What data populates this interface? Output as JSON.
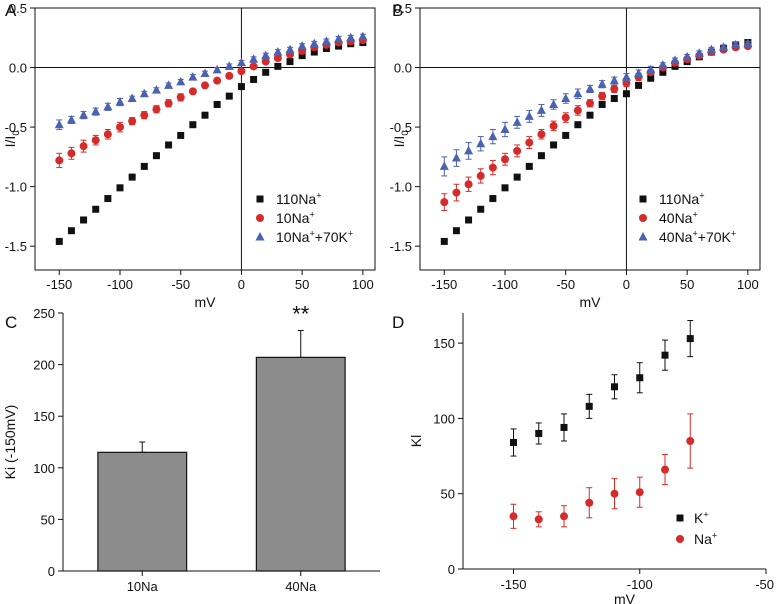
{
  "chart_data": [
    {
      "panel": "A",
      "type": "scatter",
      "xlabel": "mV",
      "ylabel": "I/I0",
      "xlim": [
        -170,
        110
      ],
      "ylim": [
        -1.7,
        0.5
      ],
      "xticks": [
        -150,
        -100,
        -50,
        0,
        50,
        100
      ],
      "yticks": [
        0.5,
        0.0,
        -0.5,
        -1.0,
        -1.5
      ],
      "xtick_labels": [
        "-150",
        "-100",
        "-50",
        "0",
        "50",
        "100"
      ],
      "ytick_labels": [
        "0.5",
        "0.0",
        "-0.5",
        "-1.0",
        "-1.5"
      ],
      "x": [
        -150,
        -140,
        -130,
        -120,
        -110,
        -100,
        -90,
        -80,
        -70,
        -60,
        -50,
        -40,
        -30,
        -20,
        -10,
        0,
        10,
        20,
        30,
        40,
        50,
        60,
        70,
        80,
        90,
        100
      ],
      "legend_position": "bottom-right",
      "series": [
        {
          "name": "110Na+",
          "legend": [
            "110Na",
            "+",
            ""
          ],
          "color": "#111111",
          "marker": "square",
          "values": [
            -1.46,
            -1.37,
            -1.28,
            -1.19,
            -1.1,
            -1.01,
            -0.92,
            -0.83,
            -0.74,
            -0.65,
            -0.57,
            -0.48,
            -0.4,
            -0.31,
            -0.24,
            -0.16,
            -0.1,
            -0.04,
            0.01,
            0.05,
            0.1,
            0.13,
            0.16,
            0.18,
            0.2,
            0.21
          ],
          "errors": null
        },
        {
          "name": "10Na+",
          "legend": [
            "10Na",
            "+",
            ""
          ],
          "color": "#d62b2b",
          "marker": "circle",
          "values": [
            -0.78,
            -0.72,
            -0.66,
            -0.61,
            -0.56,
            -0.5,
            -0.45,
            -0.4,
            -0.35,
            -0.3,
            -0.25,
            -0.2,
            -0.15,
            -0.11,
            -0.07,
            -0.03,
            0.01,
            0.05,
            0.08,
            0.11,
            0.14,
            0.17,
            0.19,
            0.21,
            0.22,
            0.23
          ],
          "errors": [
            0.06,
            0.05,
            0.05,
            0.04,
            0.04,
            0.04,
            0.03,
            0.03,
            0.03,
            0.03,
            0.03,
            0.02,
            0.02,
            0.02,
            0.02,
            0.02,
            0.02,
            0.02,
            0.02,
            0.02,
            0.02,
            0.02,
            0.02,
            0.02,
            0.02,
            0.02
          ]
        },
        {
          "name": "10Na++70K+",
          "legend": [
            "10Na",
            "+",
            "+70K",
            "+"
          ],
          "color": "#4a62b0",
          "marker": "triangle",
          "values": [
            -0.48,
            -0.44,
            -0.4,
            -0.37,
            -0.33,
            -0.29,
            -0.26,
            -0.22,
            -0.19,
            -0.15,
            -0.12,
            -0.08,
            -0.05,
            -0.02,
            0.01,
            0.04,
            0.07,
            0.1,
            0.13,
            0.15,
            0.18,
            0.2,
            0.22,
            0.24,
            0.25,
            0.26
          ],
          "errors": [
            0.04,
            0.03,
            0.03,
            0.03,
            0.03,
            0.03,
            0.02,
            0.02,
            0.02,
            0.02,
            0.02,
            0.02,
            0.02,
            0.02,
            0.02,
            0.02,
            0.02,
            0.02,
            0.02,
            0.02,
            0.02,
            0.02,
            0.02,
            0.02,
            0.02,
            0.02
          ]
        }
      ]
    },
    {
      "panel": "B",
      "type": "scatter",
      "xlabel": "mV",
      "ylabel": "I/I0",
      "xlim": [
        -170,
        110
      ],
      "ylim": [
        -1.7,
        0.5
      ],
      "xticks": [
        -150,
        -100,
        -50,
        0,
        50,
        100
      ],
      "yticks": [
        0.5,
        0.0,
        -0.5,
        -1.0,
        -1.5
      ],
      "xtick_labels": [
        "-150",
        "-100",
        "-50",
        "0",
        "50",
        "100"
      ],
      "ytick_labels": [
        "0.5",
        "0.0",
        "-0.5",
        "-1.0",
        "-1.5"
      ],
      "x": [
        -150,
        -140,
        -130,
        -120,
        -110,
        -100,
        -90,
        -80,
        -70,
        -60,
        -50,
        -40,
        -30,
        -20,
        -10,
        0,
        10,
        20,
        30,
        40,
        50,
        60,
        70,
        80,
        90,
        100
      ],
      "legend_position": "bottom-right",
      "series": [
        {
          "name": "110Na+",
          "legend": [
            "110Na",
            "+",
            ""
          ],
          "color": "#111111",
          "marker": "square",
          "values": [
            -1.46,
            -1.37,
            -1.28,
            -1.19,
            -1.1,
            -1.01,
            -0.92,
            -0.83,
            -0.74,
            -0.65,
            -0.57,
            -0.48,
            -0.4,
            -0.31,
            -0.26,
            -0.22,
            -0.15,
            -0.09,
            -0.04,
            0.01,
            0.05,
            0.09,
            0.13,
            0.16,
            0.19,
            0.21
          ],
          "errors": null
        },
        {
          "name": "40Na+",
          "legend": [
            "40Na",
            "+",
            ""
          ],
          "color": "#d62b2b",
          "marker": "circle",
          "values": [
            -1.13,
            -1.05,
            -0.98,
            -0.91,
            -0.84,
            -0.77,
            -0.7,
            -0.63,
            -0.56,
            -0.49,
            -0.42,
            -0.36,
            -0.3,
            -0.24,
            -0.18,
            -0.13,
            -0.08,
            -0.04,
            0.0,
            0.04,
            0.07,
            0.1,
            0.13,
            0.15,
            0.17,
            0.18
          ],
          "errors": [
            0.07,
            0.07,
            0.06,
            0.06,
            0.06,
            0.05,
            0.05,
            0.05,
            0.04,
            0.04,
            0.04,
            0.04,
            0.03,
            0.03,
            0.03,
            0.03,
            0.03,
            0.02,
            0.02,
            0.02,
            0.02,
            0.02,
            0.02,
            0.02,
            0.02,
            0.02
          ]
        },
        {
          "name": "40Na++70K+",
          "legend": [
            "40Na",
            "+",
            "+70K",
            "+"
          ],
          "color": "#4a62b0",
          "marker": "triangle",
          "values": [
            -0.83,
            -0.76,
            -0.7,
            -0.64,
            -0.58,
            -0.52,
            -0.46,
            -0.41,
            -0.36,
            -0.31,
            -0.26,
            -0.22,
            -0.18,
            -0.14,
            -0.11,
            -0.08,
            -0.05,
            -0.02,
            0.02,
            0.06,
            0.09,
            0.12,
            0.15,
            0.17,
            0.19,
            0.2
          ],
          "errors": [
            0.08,
            0.07,
            0.07,
            0.06,
            0.06,
            0.06,
            0.05,
            0.05,
            0.05,
            0.04,
            0.04,
            0.04,
            0.03,
            0.03,
            0.03,
            0.03,
            0.03,
            0.03,
            0.02,
            0.02,
            0.02,
            0.02,
            0.02,
            0.02,
            0.02,
            0.02
          ]
        }
      ]
    },
    {
      "panel": "C",
      "type": "bar",
      "ylabel": "Ki (-150mV)",
      "ylim": [
        0,
        250
      ],
      "yticks": [
        0,
        50,
        100,
        150,
        200,
        250
      ],
      "ytick_labels": [
        "0",
        "50",
        "100",
        "150",
        "200",
        "250"
      ],
      "categories": [
        "10Na",
        "40Na"
      ],
      "values": [
        115,
        207
      ],
      "errors": [
        10,
        26
      ],
      "bar_color": "#8c8c8c",
      "annotation": "**"
    },
    {
      "panel": "D",
      "type": "scatter",
      "xlabel": "mV",
      "ylabel": "Kl",
      "xlim": [
        -170,
        -50
      ],
      "ylim": [
        0,
        170
      ],
      "xticks": [
        -150,
        -100,
        -50
      ],
      "yticks": [
        0,
        50,
        100,
        150
      ],
      "xtick_labels": [
        "-150",
        "-100",
        "-50"
      ],
      "ytick_labels": [
        "0",
        "50",
        "100",
        "150"
      ],
      "x": [
        -150,
        -140,
        -130,
        -120,
        -110,
        -100,
        -90,
        -80
      ],
      "legend_position": "bottom-right",
      "series": [
        {
          "name": "K+",
          "legend": [
            "K",
            "+",
            ""
          ],
          "color": "#111111",
          "marker": "square",
          "values": [
            84,
            90,
            94,
            108,
            121,
            127,
            142,
            153
          ],
          "errors": [
            9,
            7,
            9,
            8,
            8,
            10,
            10,
            12
          ]
        },
        {
          "name": "Na+",
          "legend": [
            "Na",
            "+",
            ""
          ],
          "color": "#d62b2b",
          "marker": "circle",
          "values": [
            35,
            33,
            35,
            44,
            50,
            51,
            66,
            85
          ],
          "errors": [
            8,
            5,
            7,
            10,
            10,
            10,
            10,
            18
          ]
        }
      ]
    }
  ]
}
